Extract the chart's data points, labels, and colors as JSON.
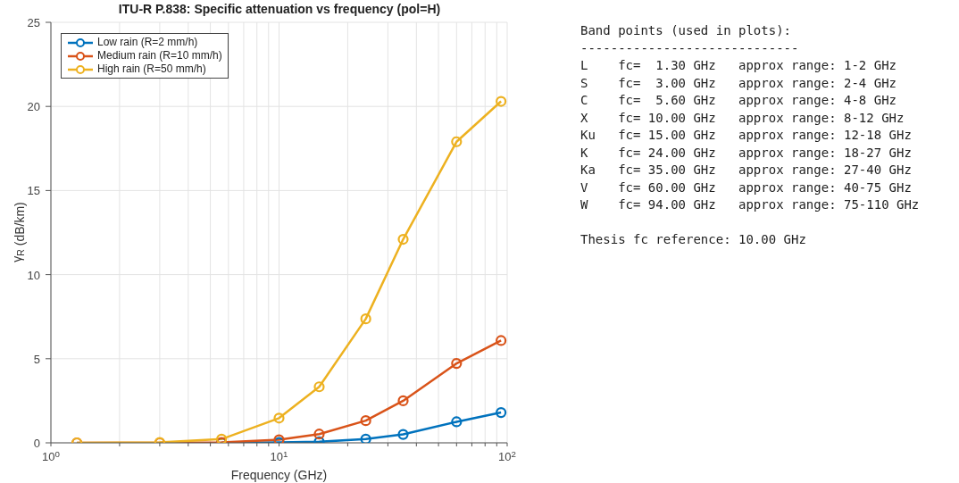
{
  "chart_data": [
    {
      "type": "line",
      "title": "ITU-R P.838: Specific attenuation vs frequency (pol=H)",
      "xlabel": "Frequency (GHz)",
      "ylabel": "γ$_{R}$   (dB/km)",
      "x": [
        1.3,
        3,
        5.6,
        10,
        15,
        24,
        35,
        60,
        94
      ],
      "series": [
        {
          "name": "Low rain (R=2 mm/h)",
          "color": "#0072bd",
          "values": [
            null,
            null,
            0,
            0.02,
            0.06,
            0.22,
            0.5,
            1.25,
            1.8
          ]
        },
        {
          "name": "Medium rain (R=10 mm/h)",
          "color": "#d95319",
          "values": [
            0,
            0,
            0.02,
            0.18,
            0.52,
            1.32,
            2.5,
            4.72,
            6.08
          ]
        },
        {
          "name": "High rain (R=50 mm/h)",
          "color": "#edb120",
          "values": [
            0,
            0.02,
            0.22,
            1.47,
            3.33,
            7.37,
            12.1,
            17.9,
            20.3
          ]
        }
      ],
      "log": "x",
      "xlim": [
        1,
        100
      ],
      "xticks": [
        {
          "value": 1,
          "label": "10$^{0}$"
        },
        {
          "value": 2,
          "label": null
        },
        {
          "value": 3,
          "label": null
        },
        {
          "value": 4,
          "label": null
        },
        {
          "value": 5,
          "label": null
        },
        {
          "value": 6,
          "label": null
        },
        {
          "value": 7,
          "label": null
        },
        {
          "value": 8,
          "label": null
        },
        {
          "value": 9,
          "label": null
        },
        {
          "value": 10,
          "label": "10$^{1}$"
        },
        {
          "value": 20,
          "label": null
        },
        {
          "value": 30,
          "label": null
        },
        {
          "value": 40,
          "label": null
        },
        {
          "value": 50,
          "label": null
        },
        {
          "value": 60,
          "label": null
        },
        {
          "value": 70,
          "label": null
        },
        {
          "value": 80,
          "label": null
        },
        {
          "value": 90,
          "label": null
        },
        {
          "value": 100,
          "label": "10$^{2}$"
        }
      ],
      "ylim": [
        0,
        25
      ],
      "yticks": [
        0,
        5,
        10,
        15,
        20,
        25
      ],
      "grid": true,
      "legend": "top left",
      "marker": "circle",
      "line_style": "solid"
    },
    {
      "type": "other",
      "title": "Band points (used in plots):",
      "annotations": [
        "-----------------------------",
        "L    fc=  1.30 GHz   approx range: 1-2 GHz",
        "S    fc=  3.00 GHz   approx range: 2-4 GHz",
        "C    fc=  5.60 GHz   approx range: 4-8 GHz",
        "X    fc= 10.00 GHz   approx range: 8-12 GHz",
        "Ku   fc= 15.00 GHz   approx range: 12-18 GHz",
        "K    fc= 24.00 GHz   approx range: 18-27 GHz",
        "Ka   fc= 35.00 GHz   approx range: 27-40 GHz",
        "V    fc= 60.00 GHz   approx range: 40-75 GHz",
        "W    fc= 94.00 GHz   approx range: 75-110 GHz",
        "Thesis fc reference: 10.00 GHz"
      ]
    }
  ]
}
